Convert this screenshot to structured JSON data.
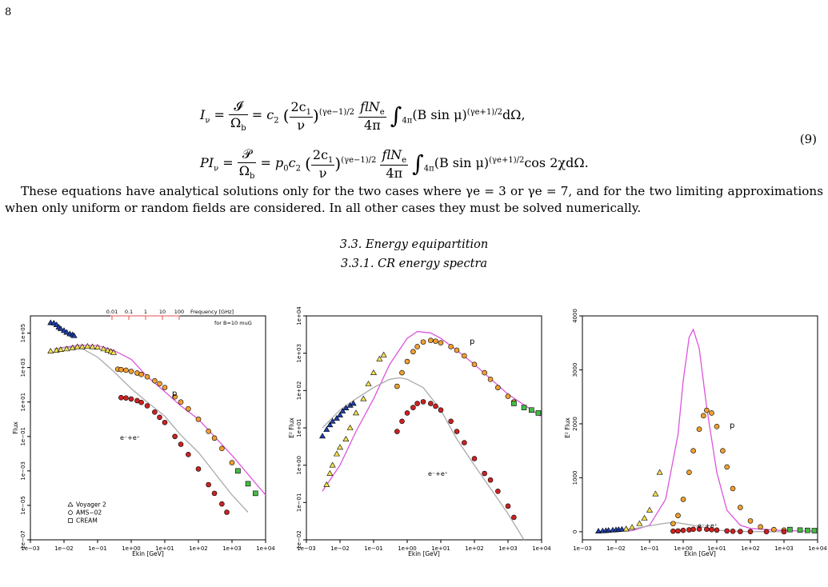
{
  "page_number": "8",
  "equation": {
    "line1": {
      "lhs": "I",
      "lhs_sub": "ν",
      "frac_num": "𝓘",
      "frac_den": "Ω",
      "frac_den_sub": "b",
      "rhs_prefix": "= c",
      "rhs_prefix_sub": "2",
      "inner_num": "2c",
      "inner_num_sub": "1",
      "inner_den": "ν",
      "exponent": "(γe−1)/2",
      "fl_num": "flN",
      "fl_num_sub": "e",
      "fl_den": "4π",
      "integral_sub": "4π",
      "integrand": "(B sin μ)",
      "integrand_exp": "(γe+1)/2",
      "tail": "dΩ,"
    },
    "line2": {
      "lhs": "PI",
      "lhs_sub": "ν",
      "frac_num": "𝒫",
      "frac_den": "Ω",
      "frac_den_sub": "b",
      "rhs_prefix": "= p",
      "rhs_prefix_sub": "0",
      "rhs_prefix2": "c",
      "rhs_prefix2_sub": "2",
      "inner_num": "2c",
      "inner_num_sub": "1",
      "inner_den": "ν",
      "exponent": "(γe−1)/2",
      "fl_num": "flN",
      "fl_num_sub": "e",
      "fl_den": "4π",
      "integral_sub": "4π",
      "integrand": "(B sin μ)",
      "integrand_exp": "(γe+1)/2",
      "tail": "cos 2χdΩ."
    },
    "number": "(9)"
  },
  "paragraph": "These equations have analytical solutions only for the two cases where γe = 3 or γe = 7, and for the two limiting approximations when only uniform or random fields are considered. In all other cases they must be solved numerically.",
  "section": "3.3. Energy equipartition",
  "subsection": "3.3.1. CR energy spectra",
  "colors": {
    "proton_model": "#dd55dd",
    "electron_model": "#aaaaaa",
    "voyager": "#1f3fa8",
    "ams_p": "#f0a030",
    "ams_e": "#cc2222",
    "cream": "#44bb44",
    "low_tri": "#f5e050"
  },
  "chart_data": [
    {
      "type": "scatter",
      "xlabel": "Ekin [GeV]",
      "ylabel": "Flux",
      "xscale": "log",
      "yscale": "log",
      "xlim": [
        0.001,
        10000
      ],
      "ylim": [
        1e-07,
        1000000.0
      ],
      "xticks": [
        "1e−03",
        "1e−02",
        "1e−01",
        "1e+00",
        "1e+01",
        "1e+02",
        "1e+03",
        "1e+04"
      ],
      "yticks": [
        "1e−07",
        "1e−05",
        "1e−03",
        "1e−01",
        "1e+01",
        "1e+03",
        "1e+05"
      ],
      "top_axis": {
        "ticks": [
          "0.01",
          "0.1",
          "1",
          "10",
          "100"
        ],
        "label": "Frequency [GHz]",
        "note": "for B=10 muG"
      },
      "legend": [
        "Voyager 2",
        "AMS−02",
        "CREAM"
      ],
      "annotations": [
        "p",
        "e⁻+e⁺"
      ],
      "series": [
        {
          "name": "Voyager 2",
          "marker": "triangle",
          "x": [
            0.004,
            0.005,
            0.006,
            0.007,
            0.008,
            0.01,
            0.012,
            0.015,
            0.018,
            0.02
          ],
          "y": [
            400000,
            380000,
            300000,
            220000,
            180000,
            140000,
            110000,
            90000,
            80000,
            70000
          ]
        },
        {
          "name": "Voyager 2",
          "marker": "triangle",
          "x": [
            0.004,
            0.006,
            0.008,
            0.012,
            0.018,
            0.025,
            0.035,
            0.05,
            0.07,
            0.1,
            0.15,
            0.2,
            0.25,
            0.3
          ],
          "y": [
            9000,
            10000,
            11000,
            12000,
            14000,
            16000,
            16000,
            17000,
            16000,
            15000,
            12000,
            10000,
            8500,
            7500
          ]
        },
        {
          "name": "AMS−02",
          "marker": "circle",
          "x": [
            0.4,
            0.5,
            0.7,
            1,
            1.5,
            2,
            3,
            5,
            7,
            10,
            20,
            30,
            50,
            100,
            200,
            300,
            500,
            1000,
            1500
          ],
          "y": [
            800,
            760,
            700,
            600,
            480,
            400,
            290,
            170,
            115,
            70,
            20,
            10,
            4,
            1,
            0.2,
            0.08,
            0.02,
            0.003,
            0.001
          ]
        },
        {
          "name": "AMS−02",
          "marker": "circle",
          "x": [
            0.5,
            0.7,
            1,
            1.5,
            2,
            3,
            5,
            7,
            10,
            20,
            30,
            50,
            100,
            200,
            300,
            500,
            700
          ],
          "y": [
            18,
            17,
            15,
            12,
            9.5,
            6,
            2.6,
            1.3,
            0.65,
            0.1,
            0.035,
            0.009,
            0.0013,
            0.00016,
            5e-05,
            1.2e-05,
            4e-06
          ]
        },
        {
          "name": "CREAM",
          "marker": "square",
          "x": [
            1500,
            3000,
            5000
          ],
          "y": [
            0.001,
            0.00018,
            5e-05
          ]
        }
      ],
      "models": [
        {
          "name": "p",
          "x": [
            0.005,
            0.01,
            0.03,
            0.1,
            0.3,
            1,
            3,
            10,
            30,
            100,
            1000,
            10000
          ],
          "y": [
            12000,
            15000,
            20000,
            19000,
            10000,
            3000,
            300,
            40,
            6,
            1,
            0.008,
            4e-05
          ]
        },
        {
          "name": "e",
          "x": [
            0.005,
            0.01,
            0.03,
            0.1,
            0.3,
            1,
            3,
            10,
            30,
            100,
            1000,
            3000
          ],
          "y": [
            12000,
            14000,
            15000,
            4000,
            600,
            60,
            10,
            1.5,
            0.12,
            0.012,
            4e-05,
            4e-06
          ]
        }
      ]
    },
    {
      "type": "scatter",
      "xlabel": "Ekin [GeV]",
      "ylabel": "E² Flux",
      "xscale": "log",
      "yscale": "log",
      "xlim": [
        0.001,
        10000
      ],
      "ylim": [
        0.01,
        10000
      ],
      "xticks": [
        "1e−03",
        "1e−02",
        "1e−01",
        "1e+00",
        "1e+01",
        "1e+02",
        "1e+03",
        "1e+04"
      ],
      "yticks": [
        "1e−02",
        "1e−01",
        "1e+00",
        "1e+01",
        "1e+02",
        "1e+03",
        "1e+04"
      ],
      "annotations": [
        "p",
        "e⁻+e⁺"
      ],
      "series": [
        {
          "name": "Voyager 2",
          "marker": "triangle",
          "x": [
            0.003,
            0.004,
            0.005,
            0.006,
            0.008,
            0.01,
            0.012,
            0.015,
            0.02,
            0.025
          ],
          "y": [
            6,
            9,
            12,
            15,
            18,
            22,
            28,
            34,
            40,
            45
          ]
        },
        {
          "name": "Voyager 2",
          "marker": "triangle",
          "x": [
            0.004,
            0.005,
            0.006,
            0.008,
            0.01,
            0.015,
            0.02,
            0.03,
            0.05,
            0.07,
            0.1,
            0.15,
            0.2
          ],
          "y": [
            0.3,
            0.6,
            1,
            2,
            3,
            5,
            10,
            25,
            60,
            150,
            300,
            700,
            900
          ]
        },
        {
          "name": "AMS−02",
          "marker": "circle",
          "x": [
            0.5,
            0.7,
            1,
            1.5,
            2,
            3,
            5,
            7,
            10,
            20,
            30,
            50,
            100,
            200,
            300,
            500,
            1000,
            1500
          ],
          "y": [
            130,
            300,
            600,
            1100,
            1500,
            2000,
            2200,
            2100,
            1900,
            1500,
            1200,
            850,
            500,
            300,
            200,
            120,
            70,
            50
          ]
        },
        {
          "name": "AMS−02",
          "marker": "circle",
          "x": [
            0.5,
            0.7,
            1,
            1.5,
            2,
            3,
            5,
            7,
            10,
            20,
            30,
            50,
            100,
            200,
            300,
            500,
            1000,
            1500
          ],
          "y": [
            8,
            15,
            25,
            35,
            45,
            50,
            45,
            38,
            30,
            15,
            8,
            4,
            1.5,
            0.6,
            0.4,
            0.2,
            0.08,
            0.04
          ]
        },
        {
          "name": "CREAM",
          "marker": "square",
          "x": [
            1500,
            3000,
            5000,
            8000
          ],
          "y": [
            45,
            35,
            30,
            25
          ]
        }
      ],
      "models": [
        {
          "name": "p",
          "x": [
            0.003,
            0.01,
            0.03,
            0.1,
            0.3,
            1,
            2,
            5,
            10,
            30,
            100,
            1000,
            10000
          ],
          "y": [
            0.2,
            1,
            8,
            60,
            500,
            2500,
            3800,
            3500,
            2500,
            1200,
            500,
            80,
            20
          ]
        },
        {
          "name": "e",
          "x": [
            0.003,
            0.01,
            0.03,
            0.1,
            0.3,
            0.6,
            1,
            3,
            10,
            30,
            100,
            1000,
            3000
          ],
          "y": [
            10,
            30,
            60,
            120,
            200,
            220,
            200,
            120,
            30,
            5,
            1,
            0.05,
            0.01
          ]
        }
      ]
    },
    {
      "type": "scatter",
      "xlabel": "Ekin [GeV]",
      "ylabel": "E² Flux",
      "xscale": "log",
      "yscale": "linear",
      "xlim": [
        0.001,
        10000
      ],
      "ylim": [
        -150,
        4000
      ],
      "xticks": [
        "1e−03",
        "1e−02",
        "1e−01",
        "1e+00",
        "1e+01",
        "1e+02",
        "1e+03",
        "1e+04"
      ],
      "yticks": [
        "0",
        "1000",
        "2000",
        "3000",
        "4000"
      ],
      "annotations": [
        "p",
        "e⁻+e⁺"
      ],
      "series": [
        {
          "name": "Voyager 2",
          "marker": "triangle",
          "x": [
            0.003,
            0.004,
            0.005,
            0.006,
            0.008,
            0.01,
            0.012,
            0.015,
            0.02
          ],
          "y": [
            10,
            15,
            20,
            25,
            30,
            35,
            40,
            45,
            50
          ]
        },
        {
          "name": "Voyager 2",
          "marker": "triangle",
          "x": [
            0.02,
            0.03,
            0.05,
            0.07,
            0.1,
            0.15,
            0.2
          ],
          "y": [
            50,
            80,
            150,
            250,
            400,
            700,
            1100
          ]
        },
        {
          "name": "AMS−02",
          "marker": "circle",
          "x": [
            0.5,
            0.7,
            1,
            1.5,
            2,
            3,
            4,
            5,
            7,
            10,
            15,
            20,
            30,
            50,
            100,
            200,
            500,
            1000
          ],
          "y": [
            150,
            300,
            600,
            1100,
            1500,
            1900,
            2150,
            2250,
            2200,
            1950,
            1500,
            1200,
            800,
            450,
            200,
            90,
            40,
            30
          ]
        },
        {
          "name": "AMS−02",
          "marker": "circle",
          "x": [
            0.5,
            0.7,
            1,
            1.5,
            2,
            3,
            5,
            7,
            10,
            20,
            30,
            50,
            100,
            300,
            1000
          ],
          "y": [
            10,
            15,
            25,
            35,
            45,
            50,
            45,
            38,
            30,
            15,
            8,
            4,
            2,
            1,
            0
          ]
        },
        {
          "name": "CREAM",
          "marker": "square",
          "x": [
            1500,
            3000,
            5000,
            8000
          ],
          "y": [
            40,
            30,
            25,
            20
          ]
        }
      ],
      "models": [
        {
          "name": "p",
          "x": [
            0.003,
            0.01,
            0.03,
            0.1,
            0.3,
            0.7,
            1,
            1.5,
            2,
            3,
            5,
            10,
            20,
            50,
            100,
            1000,
            10000
          ],
          "y": [
            0,
            5,
            20,
            120,
            600,
            1800,
            2800,
            3600,
            3750,
            3400,
            2300,
            1100,
            400,
            120,
            60,
            20,
            10
          ]
        },
        {
          "name": "e",
          "x": [
            0.003,
            0.01,
            0.03,
            0.1,
            0.3,
            0.6,
            1,
            3,
            10,
            30,
            100,
            1000
          ],
          "y": [
            5,
            20,
            50,
            110,
            160,
            170,
            150,
            100,
            30,
            8,
            2,
            0
          ]
        }
      ]
    }
  ]
}
